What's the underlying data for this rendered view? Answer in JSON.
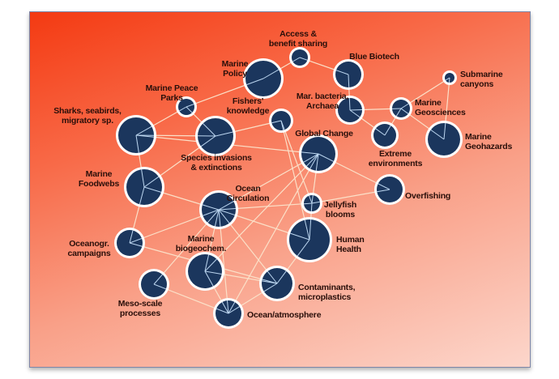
{
  "colors": {
    "node_fill": "#1b365d",
    "node_ring": "#ffffff",
    "edge": "#fbe0c8",
    "spoke": "#bcd6f0"
  },
  "nodes": [
    {
      "id": "access",
      "label": [
        "Access &",
        "benefit sharing"
      ]
    },
    {
      "id": "policy",
      "label": [
        "Marine",
        "Policy"
      ]
    },
    {
      "id": "biotech",
      "label": [
        "Blue Biotech"
      ]
    },
    {
      "id": "peace",
      "label": [
        "Marine Peace",
        "Parks"
      ]
    },
    {
      "id": "fishers",
      "label": [
        "Fishers'",
        "knowledge"
      ]
    },
    {
      "id": "bacteria",
      "label": [
        "Mar. bacteria,",
        "Archaea"
      ]
    },
    {
      "id": "geosci",
      "label": [
        "Marine",
        "Geosciences"
      ]
    },
    {
      "id": "canyons",
      "label": [
        "Submarine",
        "canyons"
      ]
    },
    {
      "id": "sharks",
      "label": [
        "Sharks, seabirds,",
        "migratory sp."
      ]
    },
    {
      "id": "invasions",
      "label": [
        "Species invasions",
        "& extinctions"
      ]
    },
    {
      "id": "global",
      "label": [
        "Global Change"
      ]
    },
    {
      "id": "extreme",
      "label": [
        "Extreme",
        "environments"
      ]
    },
    {
      "id": "geohaz",
      "label": [
        "Marine",
        "Geohazards"
      ]
    },
    {
      "id": "foodwebs",
      "label": [
        "Marine",
        "Foodwebs"
      ]
    },
    {
      "id": "circulation",
      "label": [
        "Ocean",
        "Circulation"
      ]
    },
    {
      "id": "jellyfish",
      "label": [
        "Jellyfish",
        "blooms"
      ]
    },
    {
      "id": "overfishing",
      "label": [
        "Overfishing"
      ]
    },
    {
      "id": "health",
      "label": [
        "Human",
        "Health"
      ]
    },
    {
      "id": "campaigns",
      "label": [
        "Oceanogr.",
        "campaigns"
      ]
    },
    {
      "id": "biogeochem",
      "label": [
        "Marine",
        "biogeochem."
      ]
    },
    {
      "id": "meso",
      "label": [
        "Meso-scale",
        "processes"
      ]
    },
    {
      "id": "contaminants",
      "label": [
        "Contaminants,",
        "microplastics"
      ]
    },
    {
      "id": "atmosphere",
      "label": [
        "Ocean/atmosphere"
      ]
    }
  ],
  "edges": [
    [
      "access",
      "policy"
    ],
    [
      "access",
      "biotech"
    ],
    [
      "policy",
      "peace"
    ],
    [
      "peace",
      "sharks"
    ],
    [
      "peace",
      "invasions"
    ],
    [
      "biotech",
      "bacteria"
    ],
    [
      "bacteria",
      "geosci"
    ],
    [
      "bacteria",
      "extreme"
    ],
    [
      "geosci",
      "canyons"
    ],
    [
      "geosci",
      "extreme"
    ],
    [
      "geosci",
      "geohaz"
    ],
    [
      "canyons",
      "geohaz"
    ],
    [
      "fishers",
      "invasions"
    ],
    [
      "fishers",
      "health"
    ],
    [
      "fishers",
      "jellyfish"
    ],
    [
      "sharks",
      "invasions"
    ],
    [
      "sharks",
      "foodwebs"
    ],
    [
      "sharks",
      "global"
    ],
    [
      "invasions",
      "foodwebs"
    ],
    [
      "global",
      "overfishing"
    ],
    [
      "global",
      "circulation"
    ],
    [
      "global",
      "jellyfish"
    ],
    [
      "global",
      "biogeochem"
    ],
    [
      "global",
      "atmosphere"
    ],
    [
      "foodwebs",
      "circulation"
    ],
    [
      "foodwebs",
      "campaigns"
    ],
    [
      "circulation",
      "jellyfish"
    ],
    [
      "jellyfish",
      "overfishing"
    ],
    [
      "circulation",
      "campaigns"
    ],
    [
      "circulation",
      "meso"
    ],
    [
      "circulation",
      "health"
    ],
    [
      "circulation",
      "contaminants"
    ],
    [
      "circulation",
      "atmosphere"
    ],
    [
      "circulation",
      "biogeochem"
    ],
    [
      "jellyfish",
      "health"
    ],
    [
      "health",
      "contaminants"
    ],
    [
      "campaigns",
      "contaminants"
    ],
    [
      "meso",
      "atmosphere"
    ],
    [
      "biogeochem",
      "atmosphere"
    ],
    [
      "biogeochem",
      "contaminants"
    ],
    [
      "contaminants",
      "atmosphere"
    ]
  ]
}
